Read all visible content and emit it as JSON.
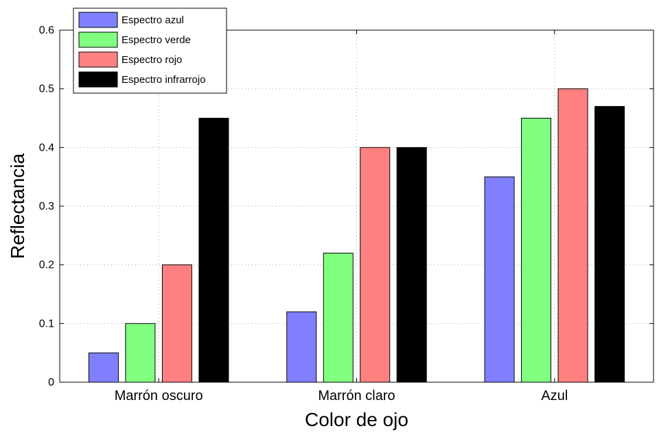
{
  "chart_data": {
    "type": "bar",
    "categories": [
      "Marrón oscuro",
      "Marrón claro",
      "Azul"
    ],
    "series": [
      {
        "name": "Espectro azul",
        "color": "#8080ff",
        "values": [
          0.05,
          0.12,
          0.35
        ]
      },
      {
        "name": "Espectro verde",
        "color": "#80ff80",
        "values": [
          0.1,
          0.22,
          0.45
        ]
      },
      {
        "name": "Espectro rojo",
        "color": "#ff8080",
        "values": [
          0.2,
          0.4,
          0.5
        ]
      },
      {
        "name": "Espectro infrarrojo",
        "color": "#000000",
        "values": [
          0.45,
          0.4,
          0.47
        ]
      }
    ],
    "xlabel": "Color de ojo",
    "ylabel": "Reflectancia",
    "ylim": [
      0,
      0.6
    ],
    "yticks": [
      "0",
      "0.1",
      "0.2",
      "0.3",
      "0.4",
      "0.5",
      "0.6"
    ],
    "grid": true,
    "legend_position": "top-left"
  }
}
